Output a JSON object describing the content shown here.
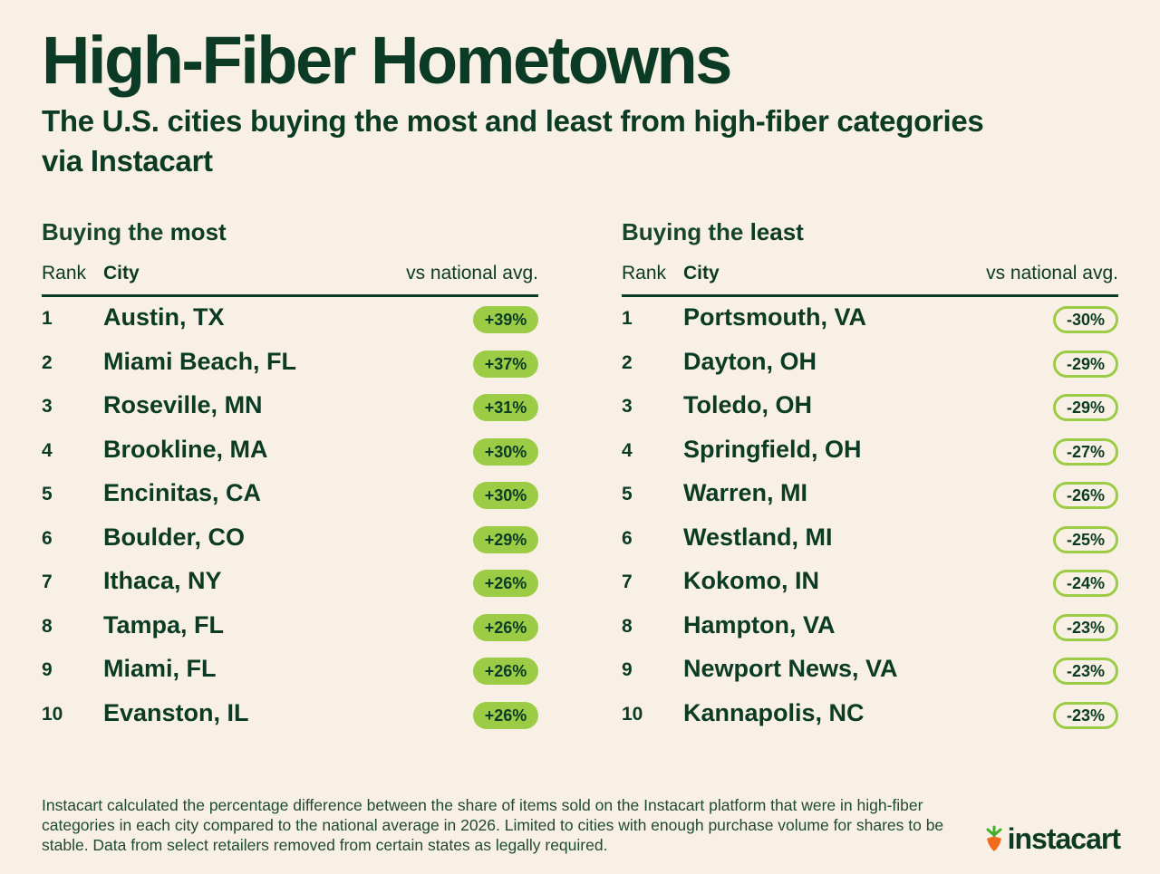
{
  "title": "High-Fiber Hometowns",
  "subtitle": "The U.S. cities buying the most and least from high-fiber categories via Instacart",
  "colors": {
    "background": "#f8f0e4",
    "text": "#0b3b24",
    "accent": "#9ccc45",
    "logo_orange": "#f26b1d",
    "logo_green": "#43b02a"
  },
  "most": {
    "title_prefix": "Buying the ",
    "title_emphasis": "most",
    "headers": {
      "rank": "Rank",
      "city": "City",
      "avg": "vs national avg."
    },
    "rows": [
      {
        "rank": "1",
        "city": "Austin, TX",
        "value": "+39%"
      },
      {
        "rank": "2",
        "city": "Miami Beach, FL",
        "value": "+37%"
      },
      {
        "rank": "3",
        "city": "Roseville, MN",
        "value": "+31%"
      },
      {
        "rank": "4",
        "city": "Brookline, MA",
        "value": "+30%"
      },
      {
        "rank": "5",
        "city": "Encinitas, CA",
        "value": "+30%"
      },
      {
        "rank": "6",
        "city": "Boulder, CO",
        "value": "+29%"
      },
      {
        "rank": "7",
        "city": "Ithaca, NY",
        "value": "+26%"
      },
      {
        "rank": "8",
        "city": "Tampa, FL",
        "value": "+26%"
      },
      {
        "rank": "9",
        "city": "Miami, FL",
        "value": "+26%"
      },
      {
        "rank": "10",
        "city": "Evanston, IL",
        "value": "+26%"
      }
    ]
  },
  "least": {
    "title_prefix": "Buying the ",
    "title_emphasis": "least",
    "headers": {
      "rank": "Rank",
      "city": "City",
      "avg": "vs national avg."
    },
    "rows": [
      {
        "rank": "1",
        "city": "Portsmouth, VA",
        "value": "-30%"
      },
      {
        "rank": "2",
        "city": "Dayton, OH",
        "value": "-29%"
      },
      {
        "rank": "3",
        "city": "Toledo, OH",
        "value": "-29%"
      },
      {
        "rank": "4",
        "city": "Springfield, OH",
        "value": "-27%"
      },
      {
        "rank": "5",
        "city": "Warren, MI",
        "value": "-26%"
      },
      {
        "rank": "6",
        "city": "Westland, MI",
        "value": "-25%"
      },
      {
        "rank": "7",
        "city": "Kokomo, IN",
        "value": "-24%"
      },
      {
        "rank": "8",
        "city": "Hampton, VA",
        "value": "-23%"
      },
      {
        "rank": "9",
        "city": "Newport News, VA",
        "value": "-23%"
      },
      {
        "rank": "10",
        "city": "Kannapolis, NC",
        "value": "-23%"
      }
    ]
  },
  "footnote": "Instacart calculated the percentage difference between the share of items sold on the Instacart platform that were in high-fiber categories in each city compared to the national average in 2026. Limited to cities with enough purchase volume for shares to be stable. Data from select retailers removed from certain states as legally required.",
  "logo": {
    "text": "instacart",
    "icon": "carrot-icon"
  }
}
